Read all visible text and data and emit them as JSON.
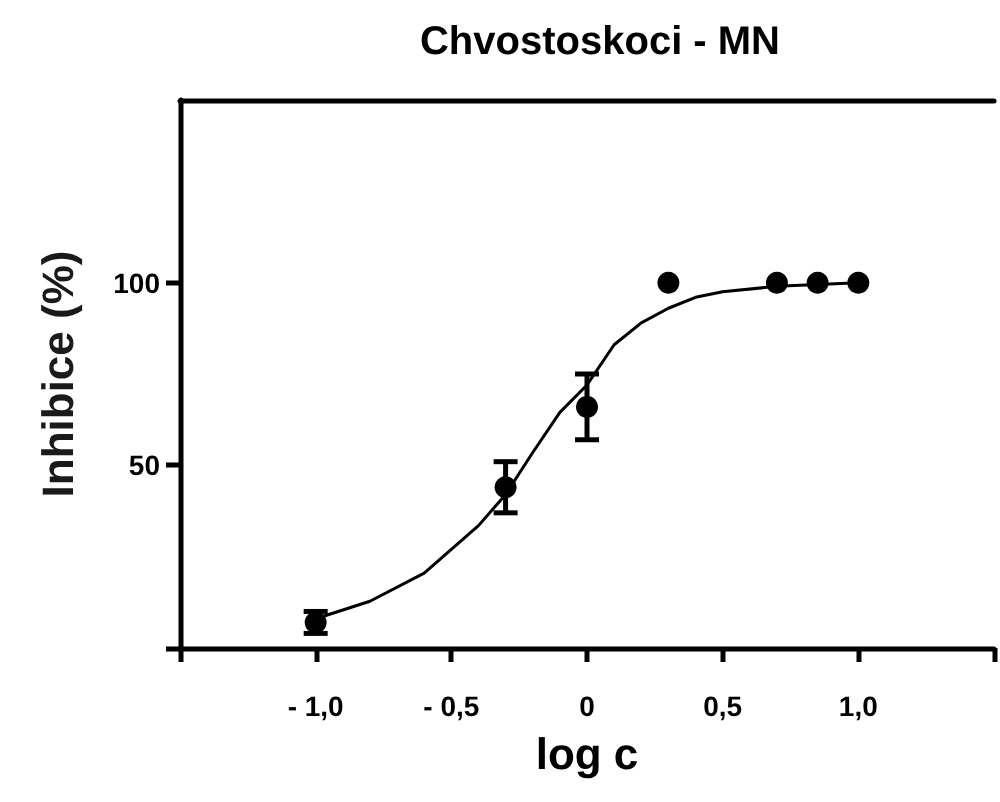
{
  "chart_data": {
    "type": "scatter",
    "title": "Chvostoskoci - MN",
    "xlabel": "log c",
    "ylabel": "Inhibice (%)",
    "xlim": [
      -1.5,
      1.5
    ],
    "ylim": [
      0,
      150
    ],
    "xticks": [
      {
        "value": -1.5,
        "label": null
      },
      {
        "value": -1,
        "label": "- 1,0"
      },
      {
        "value": -0.5,
        "label": "- 0,5"
      },
      0,
      {
        "value": 0.5,
        "label": "0,5"
      },
      {
        "value": 1,
        "label": "1,0"
      },
      {
        "value": 1.5,
        "label": null
      }
    ],
    "yticks": [
      {
        "value": 0,
        "label": null
      },
      50,
      100
    ],
    "grid": false,
    "marker": "circle",
    "series": [
      {
        "color": "#000000",
        "x": [
          -1,
          -0.3,
          0,
          0.3,
          0.7,
          0.85,
          1
        ],
        "values": [
          7,
          44,
          66,
          100,
          100,
          100,
          100
        ],
        "errors": [
          3,
          7,
          9,
          null,
          null,
          null,
          null
        ]
      },
      {
        "type": "line",
        "color": "#000000",
        "marker": "none",
        "line_style": "solid",
        "x": [
          -1,
          -0.8,
          -0.6,
          -0.4,
          -0.3,
          -0.2,
          -0.1,
          0,
          0.1,
          0.2,
          0.3,
          0.4,
          0.5,
          0.7,
          1
        ],
        "values": [
          8,
          12.8,
          20.5,
          33.5,
          42,
          53.5,
          64.5,
          72,
          83,
          89,
          93,
          96,
          97.5,
          99,
          100
        ]
      }
    ]
  }
}
